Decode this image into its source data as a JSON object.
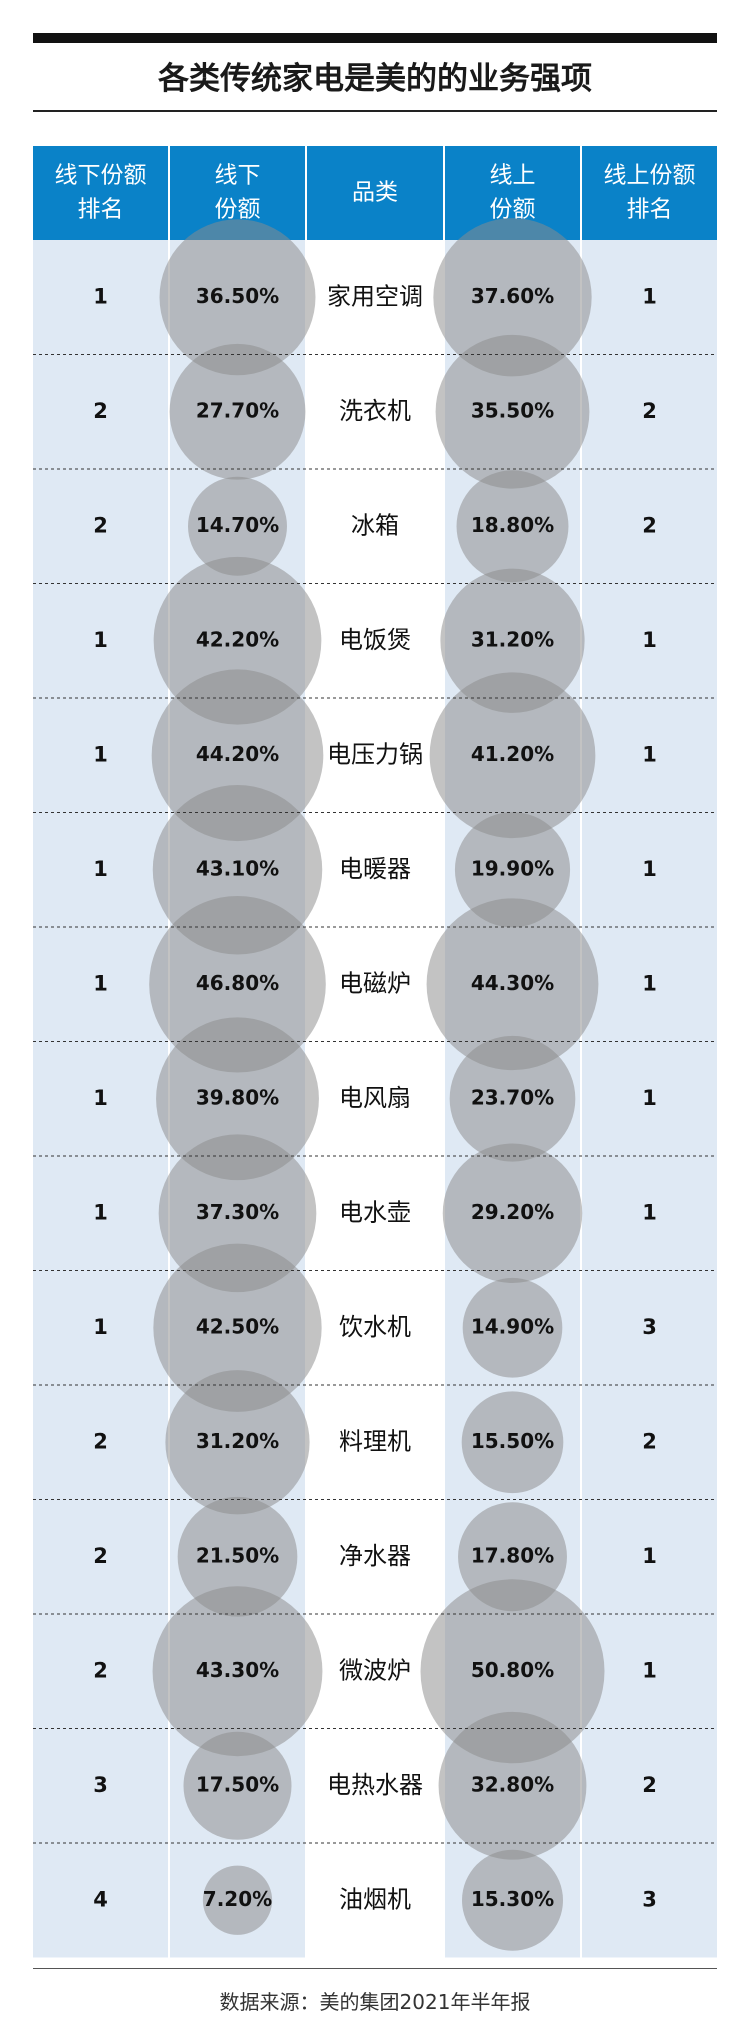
{
  "title": "各类传统家电是美的的业务强项",
  "source": "数据来源：美的集团2021年半年报",
  "colors": {
    "header_bg": "#0a82c8",
    "header_text": "#ffffff",
    "column_stripe": "#dfe9f4",
    "bubble": "#8c8c8c",
    "row_divider": "#333333",
    "body_text": "#111111"
  },
  "chart_data": {
    "type": "table",
    "columns": [
      "线下份额排名",
      "线下份额",
      "品类",
      "线上份额",
      "线上份额排名"
    ],
    "header_lines": [
      [
        "线下份额",
        "排名"
      ],
      [
        "线下",
        "份额"
      ],
      [
        "品类"
      ],
      [
        "线上",
        "份额"
      ],
      [
        "线上份额",
        "排名"
      ]
    ],
    "rows": [
      {
        "category": "家用空调",
        "offline_rank": "1",
        "offline_share": 36.5,
        "online_share": 37.6,
        "online_rank": "1"
      },
      {
        "category": "洗衣机",
        "offline_rank": "2",
        "offline_share": 27.7,
        "online_share": 35.5,
        "online_rank": "2"
      },
      {
        "category": "冰箱",
        "offline_rank": "2",
        "offline_share": 14.7,
        "online_share": 18.8,
        "online_rank": "2"
      },
      {
        "category": "电饭煲",
        "offline_rank": "1",
        "offline_share": 42.2,
        "online_share": 31.2,
        "online_rank": "1"
      },
      {
        "category": "电压力锅",
        "offline_rank": "1",
        "offline_share": 44.2,
        "online_share": 41.2,
        "online_rank": "1"
      },
      {
        "category": "电暖器",
        "offline_rank": "1",
        "offline_share": 43.1,
        "online_share": 19.9,
        "online_rank": "1"
      },
      {
        "category": "电磁炉",
        "offline_rank": "1",
        "offline_share": 46.8,
        "online_share": 44.3,
        "online_rank": "1"
      },
      {
        "category": "电风扇",
        "offline_rank": "1",
        "offline_share": 39.8,
        "online_share": 23.7,
        "online_rank": "1"
      },
      {
        "category": "电水壶",
        "offline_rank": "1",
        "offline_share": 37.3,
        "online_share": 29.2,
        "online_rank": "1"
      },
      {
        "category": "饮水机",
        "offline_rank": "1",
        "offline_share": 42.5,
        "online_share": 14.9,
        "online_rank": "3"
      },
      {
        "category": "料理机",
        "offline_rank": "2",
        "offline_share": 31.2,
        "online_share": 15.5,
        "online_rank": "2"
      },
      {
        "category": "净水器",
        "offline_rank": "2",
        "offline_share": 21.5,
        "online_share": 17.8,
        "online_rank": "1"
      },
      {
        "category": "微波炉",
        "offline_rank": "2",
        "offline_share": 43.3,
        "online_share": 50.8,
        "online_rank": "1"
      },
      {
        "category": "电热水器",
        "offline_rank": "3",
        "offline_share": 17.5,
        "online_share": 32.8,
        "online_rank": "2"
      },
      {
        "category": "油烟机",
        "offline_rank": "4",
        "offline_share": 7.2,
        "online_share": 15.3,
        "online_rank": "3"
      }
    ],
    "value_unit": "%"
  }
}
